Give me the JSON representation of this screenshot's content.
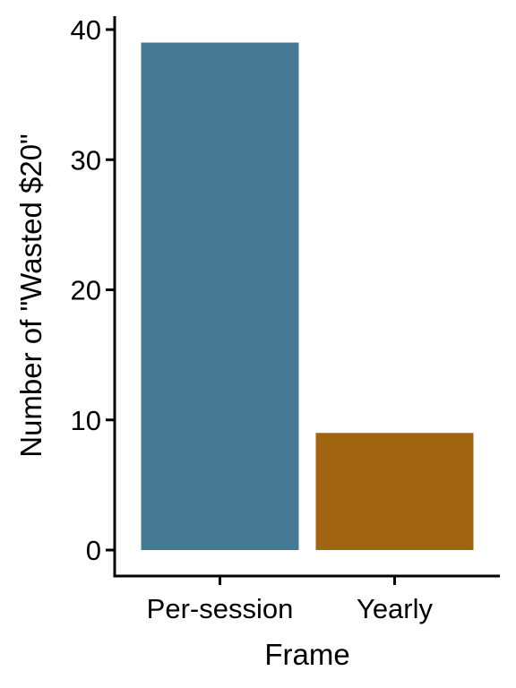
{
  "chart_data": {
    "type": "bar",
    "title": "",
    "xlabel": "Frame",
    "ylabel": "Number of \"Wasted $20\"",
    "categories": [
      "Per-session",
      "Yearly"
    ],
    "values": [
      39,
      9
    ],
    "colors": [
      "#477894",
      "#A16410"
    ],
    "ylim": [
      0,
      40
    ],
    "yticks": [
      "0",
      "10",
      "20",
      "30",
      "40"
    ],
    "grid": false,
    "legend": "none"
  }
}
